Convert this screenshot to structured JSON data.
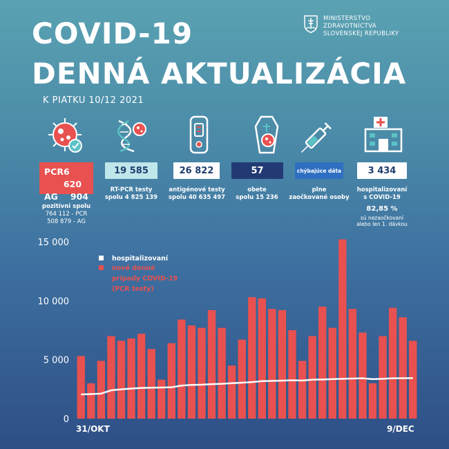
{
  "header": {
    "title_line1": "COVID-19",
    "title_line2": "DENNÁ AKTUALIZÁCIA",
    "date": "K PIATKU 10/12 2021",
    "ministry_lines": [
      "MINISTERSTVO",
      "ZDRAVOTNÍCTVA",
      "SLOVENSKEJ REPUBLIKY"
    ]
  },
  "stats": {
    "positive": {
      "pcr_label": "PCR",
      "pcr_value": "6 620",
      "ag_label": "AG",
      "ag_value": "904",
      "caption_title": "pozitívni spolu",
      "caption_line1": "764 112 - PCR",
      "caption_line2": "508 879 - AG"
    },
    "rtpcr": {
      "value": "19 585",
      "caption_line1": "RT-PCR testy",
      "caption_line2": "spolu 4 825 139"
    },
    "antigen": {
      "value": "26 822",
      "caption_line1": "antigénové testy",
      "caption_line2": "spolu 40 635 497"
    },
    "deaths": {
      "value": "57",
      "caption_line1": "obete",
      "caption_line2": "spolu 15 236"
    },
    "vaccinated": {
      "value": "chýbajúce dáta",
      "caption_line1": "plne",
      "caption_line2": "zaočkované osoby"
    },
    "hospitalized": {
      "value": "3 434",
      "caption_line1": "hospitalizovaní",
      "caption_line2": "s COVID-19",
      "pct": "82,85 %",
      "pct_line1": "sú nezaočkovaní",
      "pct_line2": "alebo len 1. dávkou"
    }
  },
  "colors": {
    "bar": "#e8514f",
    "line": "#ffffff",
    "box_teal": "#bfe6ea",
    "box_white": "#ffffff",
    "box_navy": "#223a73",
    "box_blue": "#2f6fc2"
  },
  "chart_data": {
    "type": "bar",
    "title": "",
    "ylim": [
      0,
      15000
    ],
    "yticks": [
      "15 000",
      "10 000",
      "5 000",
      "0"
    ],
    "ytick_values": [
      15000,
      10000,
      5000,
      0
    ],
    "x_start_label": "31/OKT",
    "x_end_label": "9/DEC",
    "series": [
      {
        "name": "nové denné prípady COVID-19 (PCR testy)",
        "kind": "bar",
        "values": [
          5300,
          3000,
          4900,
          7000,
          6600,
          6800,
          7200,
          5900,
          3300,
          6400,
          8400,
          7900,
          7700,
          9200,
          7700,
          4500,
          6700,
          10300,
          10200,
          9300,
          9200,
          7500,
          4900,
          7000,
          9500,
          7700,
          15200,
          9300,
          7300,
          3000,
          7000,
          9400,
          8600,
          6600
        ]
      },
      {
        "name": "hospitalizovaní",
        "kind": "line",
        "values": [
          2050,
          2080,
          2120,
          2400,
          2480,
          2550,
          2600,
          2620,
          2640,
          2660,
          2800,
          2860,
          2880,
          2920,
          2950,
          3000,
          3050,
          3100,
          3180,
          3200,
          3220,
          3250,
          3230,
          3300,
          3320,
          3350,
          3380,
          3400,
          3420,
          3350,
          3380,
          3420,
          3430,
          3434
        ]
      }
    ],
    "legend": [
      {
        "label": "hospitalizovaní",
        "color": "#ffffff"
      },
      {
        "label_line1": "nové denné",
        "label_line2": "prípady COVID-19",
        "label_line3": "(PCR testy)",
        "color": "#e8514f"
      }
    ]
  }
}
